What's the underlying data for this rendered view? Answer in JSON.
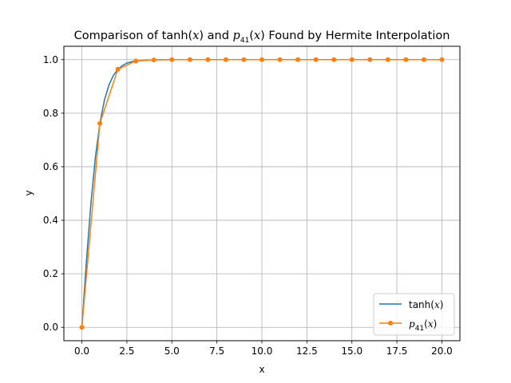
{
  "chart_data": {
    "type": "line",
    "title": {
      "prefix": "Comparison of tanh(",
      "var1": "x",
      "mid": ") and ",
      "p": "p",
      "p_sub": "41",
      "paren_open": "(",
      "var2": "x",
      "suffix": ") Found by Hermite Interpolation"
    },
    "xlabel": "x",
    "ylabel": "y",
    "xlim": [
      -1.0,
      21.0
    ],
    "ylim": [
      -0.05,
      1.05
    ],
    "xticks": [
      0.0,
      2.5,
      5.0,
      7.5,
      10.0,
      12.5,
      15.0,
      17.5,
      20.0
    ],
    "xtick_labels": [
      "0.0",
      "2.5",
      "5.0",
      "7.5",
      "10.0",
      "12.5",
      "15.0",
      "17.5",
      "20.0"
    ],
    "yticks": [
      0.0,
      0.2,
      0.4,
      0.6,
      0.8,
      1.0
    ],
    "ytick_labels": [
      "0.0",
      "0.2",
      "0.4",
      "0.6",
      "0.8",
      "1.0"
    ],
    "grid": true,
    "legend_position": "lower-right",
    "series": [
      {
        "name": {
          "prefix": "tanh(",
          "var": "x",
          "suffix": ")"
        },
        "color": "#1f77b4",
        "marker": false,
        "x": [
          0,
          0.25,
          0.5,
          0.75,
          1.0,
          1.25,
          1.5,
          1.75,
          2.0,
          2.25,
          2.5,
          2.75,
          3.0,
          3.5,
          4.0,
          5.0,
          6.0,
          8.0,
          10.0,
          12.0,
          14.0,
          16.0,
          18.0,
          20.0
        ],
        "y": [
          0.0,
          0.245,
          0.462,
          0.635,
          0.762,
          0.848,
          0.905,
          0.941,
          0.964,
          0.978,
          0.987,
          0.992,
          0.995,
          0.998,
          0.999,
          1.0,
          1.0,
          1.0,
          1.0,
          1.0,
          1.0,
          1.0,
          1.0,
          1.0
        ]
      },
      {
        "name": {
          "p": "p",
          "sub": "41",
          "open": "(",
          "var": "x",
          "close": ")"
        },
        "color": "#ff7f0e",
        "marker": true,
        "x": [
          0,
          1,
          2,
          3,
          4,
          5,
          6,
          7,
          8,
          9,
          10,
          11,
          12,
          13,
          14,
          15,
          16,
          17,
          18,
          19,
          20
        ],
        "y": [
          0.0,
          0.762,
          0.964,
          0.995,
          0.999,
          1.0,
          1.0,
          1.0,
          1.0,
          1.0,
          1.0,
          1.0,
          1.0,
          1.0,
          1.0,
          1.0,
          1.0,
          1.0,
          1.0,
          1.0,
          1.0
        ]
      }
    ]
  }
}
